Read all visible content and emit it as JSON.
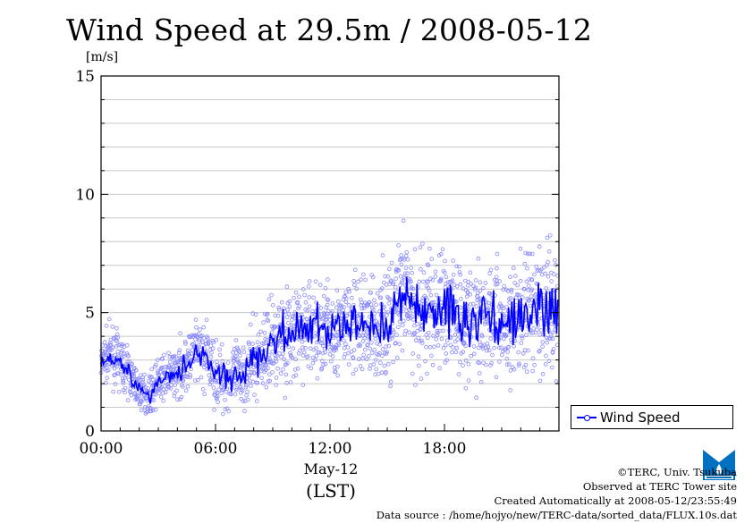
{
  "chart_data": {
    "type": "scatter",
    "title": "Wind Speed at 29.5m / 2008-05-12",
    "ylabel": "[m/s]",
    "xlabel_date": "May-12",
    "xlabel_zone": "(LST)",
    "x_ticks": [
      "00:00",
      "06:00",
      "12:00",
      "18:00"
    ],
    "x_range_hours": [
      0,
      24
    ],
    "y_ticks": [
      "0",
      "5",
      "10",
      "15"
    ],
    "ylim": [
      0,
      15
    ],
    "grid": true,
    "legend_position": "right-bottom",
    "series": [
      {
        "name": "Wind Speed",
        "color": "#0000ff",
        "x_hours": [
          0.0,
          0.5,
          1.0,
          1.5,
          2.0,
          2.5,
          3.0,
          3.5,
          4.0,
          4.5,
          5.0,
          5.5,
          6.0,
          6.5,
          7.0,
          7.5,
          8.0,
          8.5,
          9.0,
          9.5,
          10.0,
          10.5,
          11.0,
          11.5,
          12.0,
          12.5,
          13.0,
          13.5,
          14.0,
          14.5,
          15.0,
          15.5,
          16.0,
          16.5,
          17.0,
          17.5,
          18.0,
          18.5,
          19.0,
          19.5,
          20.0,
          20.5,
          21.0,
          21.5,
          22.0,
          22.5,
          23.0,
          23.5
        ],
        "mean_values": [
          2.9,
          3.3,
          2.9,
          2.4,
          1.7,
          1.5,
          2.1,
          2.3,
          2.5,
          2.9,
          3.3,
          3.2,
          2.4,
          2.2,
          2.3,
          2.5,
          2.9,
          3.3,
          3.8,
          4.1,
          3.9,
          4.2,
          4.4,
          4.3,
          4.3,
          4.2,
          4.5,
          4.4,
          4.6,
          4.3,
          4.7,
          5.2,
          5.6,
          5.0,
          5.3,
          5.0,
          5.2,
          5.1,
          4.7,
          4.6,
          4.8,
          5.0,
          4.6,
          4.4,
          5.0,
          4.7,
          5.2,
          5.1
        ],
        "spread": [
          0.6,
          0.7,
          0.7,
          0.6,
          0.5,
          0.5,
          0.6,
          0.6,
          0.7,
          0.8,
          0.9,
          0.9,
          0.9,
          0.9,
          0.9,
          1.0,
          1.0,
          1.1,
          1.2,
          1.3,
          1.3,
          1.3,
          1.3,
          1.3,
          1.3,
          1.3,
          1.4,
          1.4,
          1.4,
          1.4,
          1.6,
          1.7,
          1.8,
          1.8,
          1.8,
          1.7,
          1.7,
          1.7,
          1.6,
          1.6,
          1.6,
          1.6,
          1.6,
          1.6,
          1.7,
          1.7,
          1.8,
          1.8
        ]
      }
    ]
  },
  "legend": {
    "label": "Wind Speed"
  },
  "credits": {
    "copyright": "©TERC, Univ. Tsukuba",
    "observed": "Observed at TERC Tower site",
    "created": "Created Automatically at 2008-05-12/23:55:49",
    "source": "Data source : /home/hojyo/new/TERC-data/sorted_data/FLUX.10s.dat"
  }
}
